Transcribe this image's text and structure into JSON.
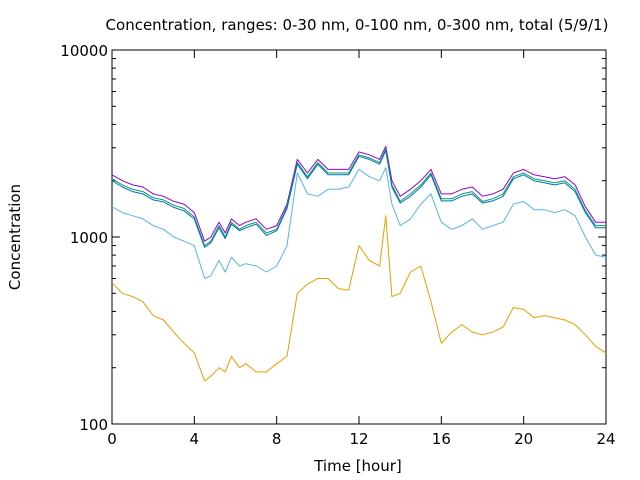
{
  "chart_data": {
    "type": "line",
    "title": "Concentration, ranges: 0-30 nm, 0-100 nm, 0-300 nm, total (5/9/1)",
    "xlabel": "Time [hour]",
    "ylabel": "Concentration",
    "xlim": [
      0,
      24
    ],
    "ylim": [
      100,
      10000
    ],
    "yscale": "log",
    "grid": false,
    "legend": "none",
    "x_ticks": [
      0,
      4,
      8,
      12,
      16,
      20,
      24
    ],
    "x_tick_labels": [
      "0",
      "4",
      "8",
      "12",
      "16",
      "20",
      "24"
    ],
    "y_ticks": [
      100,
      1000,
      10000
    ],
    "y_tick_labels": [
      "100",
      "1000",
      "10000"
    ],
    "x": [
      0,
      0.5,
      1,
      1.5,
      2,
      2.5,
      3,
      3.5,
      4,
      4.5,
      4.8,
      5.2,
      5.5,
      5.8,
      6.2,
      6.5,
      7,
      7.5,
      8,
      8.5,
      9,
      9.5,
      10,
      10.5,
      11,
      11.5,
      12,
      12.5,
      13,
      13.3,
      13.6,
      14,
      14.5,
      15,
      15.5,
      16,
      16.5,
      17,
      17.5,
      18,
      18.5,
      19,
      19.5,
      20,
      20.5,
      21,
      21.5,
      22,
      22.5,
      23,
      23.5,
      24
    ],
    "series": [
      {
        "color": "#9400d3",
        "values": [
          2150,
          2000,
          1900,
          1850,
          1700,
          1650,
          1550,
          1500,
          1350,
          950,
          1000,
          1200,
          1050,
          1250,
          1150,
          1200,
          1250,
          1100,
          1150,
          1500,
          2600,
          2200,
          2600,
          2300,
          2300,
          2300,
          2850,
          2750,
          2600,
          3050,
          2000,
          1650,
          1800,
          2000,
          2300,
          1700,
          1700,
          1800,
          1850,
          1650,
          1700,
          1800,
          2200,
          2300,
          2150,
          2100,
          2050,
          2100,
          1900,
          1450,
          1200,
          1200
        ]
      },
      {
        "color": "#009e73",
        "values": [
          2050,
          1900,
          1800,
          1750,
          1620,
          1580,
          1480,
          1420,
          1280,
          900,
          950,
          1150,
          1000,
          1200,
          1100,
          1150,
          1200,
          1050,
          1100,
          1450,
          2500,
          2100,
          2500,
          2200,
          2200,
          2200,
          2750,
          2650,
          2500,
          2950,
          1900,
          1550,
          1700,
          1900,
          2200,
          1600,
          1600,
          1700,
          1750,
          1550,
          1600,
          1700,
          2100,
          2200,
          2050,
          2000,
          1950,
          2000,
          1800,
          1380,
          1150,
          1150
        ]
      },
      {
        "color": "#0072b2",
        "values": [
          2000,
          1850,
          1750,
          1700,
          1580,
          1540,
          1440,
          1380,
          1250,
          880,
          930,
          1120,
          980,
          1170,
          1080,
          1120,
          1170,
          1020,
          1080,
          1420,
          2450,
          2050,
          2450,
          2150,
          2150,
          2150,
          2700,
          2600,
          2450,
          2900,
          1850,
          1520,
          1650,
          1850,
          2150,
          1560,
          1560,
          1650,
          1700,
          1520,
          1560,
          1650,
          2050,
          2150,
          2000,
          1950,
          1900,
          1950,
          1750,
          1350,
          1120,
          1120
        ]
      },
      {
        "color": "#56b4e9",
        "values": [
          1450,
          1350,
          1300,
          1250,
          1150,
          1100,
          1000,
          950,
          900,
          600,
          620,
          750,
          650,
          780,
          700,
          720,
          700,
          650,
          700,
          900,
          2200,
          1700,
          1650,
          1800,
          1800,
          1850,
          2300,
          2100,
          2000,
          2350,
          1500,
          1150,
          1250,
          1500,
          1700,
          1200,
          1100,
          1150,
          1250,
          1100,
          1150,
          1200,
          1500,
          1550,
          1400,
          1400,
          1350,
          1400,
          1300,
          1000,
          800,
          780
        ]
      },
      {
        "color": "#e69f00",
        "values": [
          570,
          500,
          480,
          450,
          380,
          360,
          310,
          270,
          240,
          170,
          180,
          200,
          190,
          230,
          200,
          210,
          190,
          190,
          210,
          230,
          500,
          560,
          600,
          600,
          530,
          520,
          900,
          750,
          700,
          1300,
          480,
          500,
          650,
          700,
          450,
          270,
          310,
          340,
          310,
          300,
          310,
          330,
          420,
          410,
          370,
          380,
          370,
          360,
          340,
          300,
          260,
          240
        ]
      }
    ]
  }
}
